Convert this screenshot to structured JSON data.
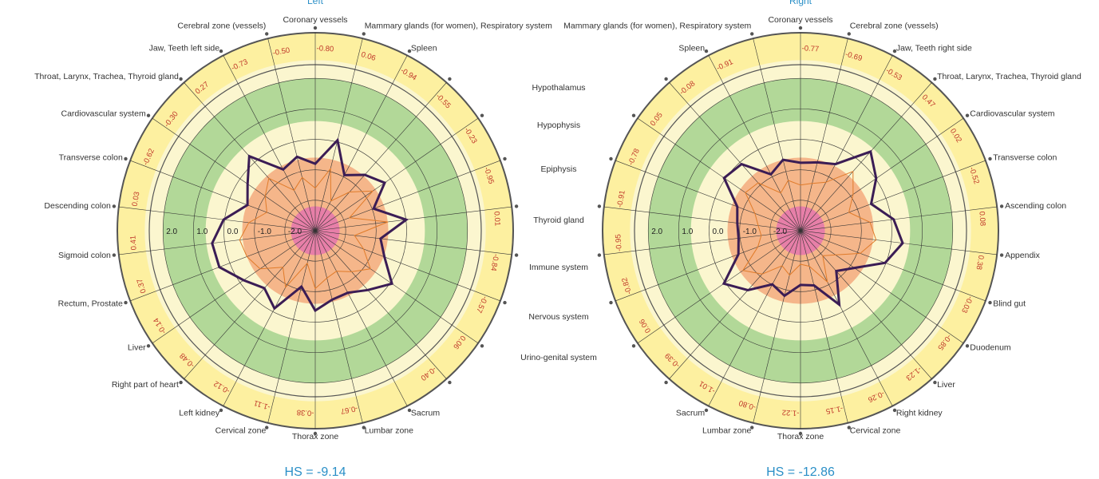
{
  "colors": {
    "yellow": "#fdf0a0",
    "paleYellow": "#fbf6cf",
    "green": "#b2d898",
    "orange": "#f5b68a",
    "pink": "#e77fa8",
    "outline": "#555555",
    "spoke": "#333333",
    "valueText": "#c0392b",
    "mainSeries": "#3b1d55",
    "secondSeries": "#e07b2a",
    "accent": "#2a8fc7"
  },
  "ticks": [
    "2.0",
    "1.0",
    "0.0",
    "-1.0",
    "-2.0"
  ],
  "middle_labels": [
    "Hypothalamus",
    "Hypophysis",
    "Epiphysis",
    "Thyroid gland",
    "Immune system",
    "Nervous system",
    "Urino-genital system"
  ],
  "chart_data": [
    {
      "type": "radar",
      "title": "Left",
      "hs": "HS = -9.14",
      "rlim": [
        -3,
        3.5
      ],
      "zones": [
        {
          "from": -3,
          "to": -2.2,
          "name": "pink"
        },
        {
          "from": -2.2,
          "to": -0.6,
          "name": "orange"
        },
        {
          "from": -0.6,
          "to": 0.6,
          "name": "paleYellow"
        },
        {
          "from": 0.6,
          "to": 2.0,
          "name": "green"
        },
        {
          "from": 2.0,
          "to": 2.6,
          "name": "paleYellow"
        },
        {
          "from": 2.6,
          "to": 3.5,
          "name": "yellow"
        }
      ],
      "categories": [
        "Coronary vessels",
        "Mammary glands (for women), Respiratory system",
        "Spleen",
        "",
        "",
        "",
        "",
        "",
        "",
        "",
        "",
        "Sacrum",
        "Lumbar zone",
        "Thorax zone",
        "Cervical zone",
        "Left kidney",
        "Right part of heart",
        "Liver",
        "Rectum, Prostate",
        "Sigmoid colon",
        "Descending colon",
        "Transverse colon",
        "Cardiovascular system",
        "Throat, Larynx, Trachea, Thyroid gland",
        "Jaw, Teeth left side",
        "Cerebral zone (vessels)"
      ],
      "value_labels": [
        "-0.80",
        "0.06",
        "-0.94",
        "-0.55",
        "-0.23",
        "-0.95",
        "0.01",
        "-0.84",
        "-0.57",
        "0.06",
        "-0.40",
        "",
        "-0.67",
        "-0.38",
        "-1.11",
        "-0.12",
        "-0.48",
        "-0.14",
        "0.37",
        "0.41",
        "0.03",
        "-0.62",
        "-0.30",
        "0.27",
        "-0.73",
        "-0.50"
      ],
      "series": [
        {
          "name": "main",
          "values": [
            -0.8,
            0.06,
            -0.94,
            -0.55,
            -0.23,
            -0.95,
            0.01,
            -0.84,
            -0.57,
            0.06,
            -0.4,
            -0.7,
            -0.67,
            -0.38,
            -1.11,
            -0.12,
            -0.48,
            -0.14,
            0.37,
            0.41,
            0.03,
            -0.62,
            -0.3,
            0.27,
            -0.73,
            -0.5
          ]
        },
        {
          "name": "secondary",
          "values": [
            -1.6,
            -0.9,
            -1.9,
            -1.3,
            -0.7,
            -1.8,
            -0.6,
            -1.7,
            -1.3,
            -0.8,
            -1.2,
            -1.5,
            -1.4,
            -1.1,
            -1.9,
            -0.9,
            -1.4,
            -0.8,
            -0.6,
            -0.5,
            -0.8,
            -1.3,
            -1.0,
            -0.7,
            -1.5,
            -1.2
          ]
        }
      ]
    },
    {
      "type": "radar",
      "title": "Right",
      "hs": "HS = -12.86",
      "rlim": [
        -3,
        3.5
      ],
      "zones": [
        {
          "from": -3,
          "to": -2.2,
          "name": "pink"
        },
        {
          "from": -2.2,
          "to": -0.6,
          "name": "orange"
        },
        {
          "from": -0.6,
          "to": 0.6,
          "name": "paleYellow"
        },
        {
          "from": 0.6,
          "to": 2.0,
          "name": "green"
        },
        {
          "from": 2.0,
          "to": 2.6,
          "name": "paleYellow"
        },
        {
          "from": 2.6,
          "to": 3.5,
          "name": "yellow"
        }
      ],
      "categories": [
        "Coronary vessels",
        "Cerebral zone (vessels)",
        "Jaw, Teeth right side",
        "Throat, Larynx, Trachea, Thyroid gland",
        "Cardiovascular system",
        "Transverse colon",
        "Ascending colon",
        "Appendix",
        "Blind gut",
        "Duodenum",
        "Liver",
        "Right kidney",
        "Cervical zone",
        "Thorax zone",
        "Lumbar zone",
        "Sacrum",
        "",
        "",
        "",
        "",
        "",
        "",
        "",
        "",
        "Spleen",
        "Mammary glands (for women), Respiratory system"
      ],
      "value_labels": [
        "-0.77",
        "-0.69",
        "-0.53",
        "0.47",
        "0.02",
        "-0.52",
        "0.08",
        "0.38",
        "-0.03",
        "-0.85",
        "-1.23",
        "-0.26",
        "-1.15",
        "-1.22",
        "-0.80",
        "-1.01",
        "-0.39",
        "0.06",
        "-0.82",
        "-0.95",
        "-0.91",
        "-0.78",
        "0.05",
        "-0.08",
        "-0.91",
        ""
      ],
      "series": [
        {
          "name": "main",
          "values": [
            -0.77,
            -0.69,
            -0.53,
            0.47,
            0.02,
            -0.52,
            0.08,
            0.38,
            -0.03,
            -0.85,
            -1.23,
            -0.26,
            -1.15,
            -1.22,
            -0.8,
            -1.01,
            -0.39,
            0.06,
            -0.82,
            -0.95,
            -0.91,
            -0.78,
            0.05,
            -0.08,
            -0.91,
            -0.6
          ]
        },
        {
          "name": "secondary",
          "values": [
            -1.5,
            -1.4,
            -1.2,
            -0.4,
            -0.9,
            -1.3,
            -0.7,
            -0.5,
            -0.9,
            -1.6,
            -1.9,
            -1.1,
            -1.8,
            -1.9,
            -1.5,
            -1.7,
            -1.1,
            -0.7,
            -1.5,
            -1.7,
            -1.6,
            -1.4,
            -0.8,
            -0.9,
            -1.6,
            -1.3
          ]
        }
      ]
    }
  ]
}
